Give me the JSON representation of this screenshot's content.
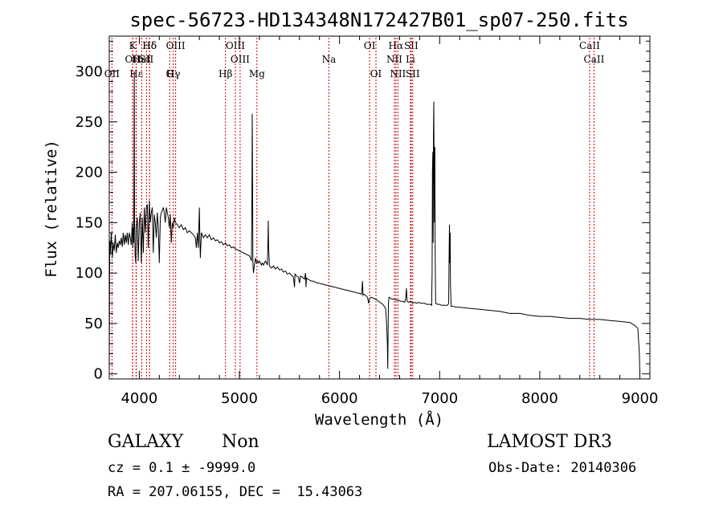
{
  "chart_data": {
    "type": "line",
    "title": "spec-56723-HD134348N172427B01_sp07-250.fits",
    "xlabel": "Wavelength (Å)",
    "ylabel": "Flux (relative)",
    "xlim": [
      3700,
      9100
    ],
    "ylim": [
      -5,
      335
    ],
    "x_ticks": [
      4000,
      5000,
      6000,
      7000,
      8000,
      9000
    ],
    "y_ticks": [
      0,
      50,
      100,
      150,
      200,
      250,
      300
    ],
    "grid": false,
    "line_color": "#000000",
    "marker_color": "#cc0000",
    "spectrum": [
      [
        3700,
        0
      ],
      [
        3705,
        132
      ],
      [
        3710,
        118
      ],
      [
        3720,
        140
      ],
      [
        3730,
        115
      ],
      [
        3740,
        130
      ],
      [
        3750,
        122
      ],
      [
        3760,
        138
      ],
      [
        3770,
        120
      ],
      [
        3780,
        130
      ],
      [
        3790,
        125
      ],
      [
        3800,
        132
      ],
      [
        3810,
        128
      ],
      [
        3820,
        135
      ],
      [
        3830,
        126
      ],
      [
        3840,
        140
      ],
      [
        3850,
        128
      ],
      [
        3860,
        138
      ],
      [
        3870,
        130
      ],
      [
        3880,
        140
      ],
      [
        3890,
        128
      ],
      [
        3900,
        140
      ],
      [
        3910,
        135
      ],
      [
        3920,
        128
      ],
      [
        3930,
        150
      ],
      [
        3935,
        125
      ],
      [
        3940,
        145
      ],
      [
        3945,
        130
      ],
      [
        3948,
        200
      ],
      [
        3950,
        300
      ],
      [
        3953,
        150
      ],
      [
        3958,
        118
      ],
      [
        3965,
        110
      ],
      [
        3970,
        145
      ],
      [
        3980,
        155
      ],
      [
        3990,
        112
      ],
      [
        4000,
        150
      ],
      [
        4010,
        160
      ],
      [
        4020,
        110
      ],
      [
        4030,
        155
      ],
      [
        4040,
        120
      ],
      [
        4050,
        165
      ],
      [
        4060,
        140
      ],
      [
        4070,
        165
      ],
      [
        4080,
        168
      ],
      [
        4090,
        125
      ],
      [
        4100,
        172
      ],
      [
        4110,
        150
      ],
      [
        4120,
        160
      ],
      [
        4130,
        165
      ],
      [
        4140,
        120
      ],
      [
        4150,
        158
      ],
      [
        4160,
        150
      ],
      [
        4170,
        135
      ],
      [
        4180,
        160
      ],
      [
        4190,
        145
      ],
      [
        4200,
        110
      ],
      [
        4210,
        155
      ],
      [
        4220,
        160
      ],
      [
        4230,
        162
      ],
      [
        4240,
        165
      ],
      [
        4250,
        160
      ],
      [
        4260,
        150
      ],
      [
        4270,
        165
      ],
      [
        4280,
        160
      ],
      [
        4290,
        155
      ],
      [
        4300,
        145
      ],
      [
        4310,
        158
      ],
      [
        4320,
        130
      ],
      [
        4330,
        150
      ],
      [
        4340,
        145
      ],
      [
        4350,
        155
      ],
      [
        4360,
        150
      ],
      [
        4380,
        148
      ],
      [
        4400,
        145
      ],
      [
        4420,
        148
      ],
      [
        4440,
        143
      ],
      [
        4460,
        145
      ],
      [
        4480,
        140
      ],
      [
        4500,
        142
      ],
      [
        4520,
        140
      ],
      [
        4540,
        138
      ],
      [
        4560,
        135
      ],
      [
        4570,
        125
      ],
      [
        4580,
        140
      ],
      [
        4590,
        125
      ],
      [
        4600,
        165
      ],
      [
        4605,
        135
      ],
      [
        4610,
        115
      ],
      [
        4620,
        140
      ],
      [
        4640,
        135
      ],
      [
        4660,
        138
      ],
      [
        4680,
        135
      ],
      [
        4700,
        138
      ],
      [
        4720,
        133
      ],
      [
        4740,
        135
      ],
      [
        4760,
        132
      ],
      [
        4780,
        133
      ],
      [
        4800,
        130
      ],
      [
        4820,
        131
      ],
      [
        4840,
        128
      ],
      [
        4860,
        130
      ],
      [
        4880,
        127
      ],
      [
        4900,
        128
      ],
      [
        4920,
        125
      ],
      [
        4940,
        126
      ],
      [
        4960,
        124
      ],
      [
        4980,
        123
      ],
      [
        5000,
        122
      ],
      [
        5020,
        121
      ],
      [
        5040,
        120
      ],
      [
        5060,
        119
      ],
      [
        5080,
        118
      ],
      [
        5100,
        117
      ],
      [
        5110,
        115
      ],
      [
        5120,
        112
      ],
      [
        5125,
        175
      ],
      [
        5128,
        258
      ],
      [
        5132,
        175
      ],
      [
        5135,
        110
      ],
      [
        5140,
        100
      ],
      [
        5150,
        108
      ],
      [
        5160,
        115
      ],
      [
        5170,
        110
      ],
      [
        5180,
        112
      ],
      [
        5190,
        110
      ],
      [
        5200,
        112
      ],
      [
        5210,
        110
      ],
      [
        5220,
        108
      ],
      [
        5230,
        110
      ],
      [
        5240,
        108
      ],
      [
        5250,
        110
      ],
      [
        5260,
        112
      ],
      [
        5270,
        110
      ],
      [
        5280,
        108
      ],
      [
        5285,
        130
      ],
      [
        5288,
        152
      ],
      [
        5292,
        125
      ],
      [
        5300,
        107
      ],
      [
        5320,
        105
      ],
      [
        5340,
        107
      ],
      [
        5360,
        104
      ],
      [
        5380,
        106
      ],
      [
        5400,
        103
      ],
      [
        5420,
        104
      ],
      [
        5440,
        101
      ],
      [
        5460,
        102
      ],
      [
        5480,
        99
      ],
      [
        5500,
        100
      ],
      [
        5520,
        98
      ],
      [
        5540,
        96
      ],
      [
        5550,
        86
      ],
      [
        5555,
        99
      ],
      [
        5570,
        97
      ],
      [
        5590,
        96
      ],
      [
        5600,
        90
      ],
      [
        5610,
        97
      ],
      [
        5630,
        96
      ],
      [
        5650,
        94
      ],
      [
        5660,
        100
      ],
      [
        5665,
        86
      ],
      [
        5670,
        95
      ],
      [
        5700,
        93
      ],
      [
        5720,
        92
      ],
      [
        5740,
        92
      ],
      [
        5760,
        91
      ],
      [
        5780,
        90
      ],
      [
        5800,
        90
      ],
      [
        5820,
        89
      ],
      [
        5840,
        89
      ],
      [
        5860,
        88
      ],
      [
        5880,
        88
      ],
      [
        5900,
        87
      ],
      [
        5920,
        87
      ],
      [
        5940,
        86
      ],
      [
        5960,
        86
      ],
      [
        5980,
        85
      ],
      [
        6000,
        85
      ],
      [
        6020,
        84
      ],
      [
        6040,
        84
      ],
      [
        6060,
        83
      ],
      [
        6080,
        83
      ],
      [
        6100,
        82
      ],
      [
        6120,
        82
      ],
      [
        6140,
        81
      ],
      [
        6160,
        81
      ],
      [
        6180,
        80
      ],
      [
        6200,
        80
      ],
      [
        6220,
        79
      ],
      [
        6230,
        92
      ],
      [
        6235,
        78
      ],
      [
        6240,
        79
      ],
      [
        6260,
        78
      ],
      [
        6280,
        76
      ],
      [
        6290,
        70
      ],
      [
        6300,
        75
      ],
      [
        6320,
        76
      ],
      [
        6340,
        75
      ],
      [
        6360,
        74
      ],
      [
        6380,
        73
      ],
      [
        6400,
        71
      ],
      [
        6420,
        70
      ],
      [
        6440,
        68
      ],
      [
        6460,
        65
      ],
      [
        6470,
        50
      ],
      [
        6478,
        30
      ],
      [
        6482,
        5
      ],
      [
        6488,
        70
      ],
      [
        6495,
        76
      ],
      [
        6510,
        75
      ],
      [
        6530,
        74
      ],
      [
        6550,
        74
      ],
      [
        6570,
        73
      ],
      [
        6590,
        73
      ],
      [
        6610,
        72
      ],
      [
        6630,
        72
      ],
      [
        6650,
        71
      ],
      [
        6660,
        74
      ],
      [
        6668,
        85
      ],
      [
        6675,
        72
      ],
      [
        6690,
        71
      ],
      [
        6710,
        72
      ],
      [
        6730,
        70
      ],
      [
        6750,
        71
      ],
      [
        6770,
        70
      ],
      [
        6790,
        71
      ],
      [
        6810,
        70
      ],
      [
        6830,
        70
      ],
      [
        6850,
        70
      ],
      [
        6870,
        69
      ],
      [
        6890,
        69
      ],
      [
        6910,
        69
      ],
      [
        6920,
        68
      ],
      [
        6925,
        100
      ],
      [
        6928,
        200
      ],
      [
        6932,
        220
      ],
      [
        6935,
        130
      ],
      [
        6938,
        240
      ],
      [
        6942,
        270
      ],
      [
        6945,
        200
      ],
      [
        6948,
        150
      ],
      [
        6952,
        225
      ],
      [
        6955,
        120
      ],
      [
        6960,
        70
      ],
      [
        6980,
        69
      ],
      [
        7000,
        69
      ],
      [
        7020,
        68
      ],
      [
        7040,
        68
      ],
      [
        7060,
        68
      ],
      [
        7080,
        68
      ],
      [
        7090,
        70
      ],
      [
        7095,
        120
      ],
      [
        7098,
        148
      ],
      [
        7102,
        110
      ],
      [
        7105,
        140
      ],
      [
        7108,
        90
      ],
      [
        7115,
        67
      ],
      [
        7140,
        67
      ],
      [
        7160,
        66
      ],
      [
        7200,
        66
      ],
      [
        7300,
        65
      ],
      [
        7400,
        64
      ],
      [
        7500,
        63
      ],
      [
        7600,
        62
      ],
      [
        7700,
        60
      ],
      [
        7800,
        60
      ],
      [
        7900,
        58
      ],
      [
        8000,
        57
      ],
      [
        8100,
        57
      ],
      [
        8200,
        56
      ],
      [
        8300,
        55
      ],
      [
        8400,
        55
      ],
      [
        8500,
        54
      ],
      [
        8600,
        54
      ],
      [
        8700,
        53
      ],
      [
        8800,
        52
      ],
      [
        8900,
        51
      ],
      [
        8950,
        48
      ],
      [
        8980,
        45
      ],
      [
        8995,
        20
      ],
      [
        9000,
        0
      ]
    ],
    "line_markers": [
      {
        "x": 3727,
        "row": 2,
        "label": "OII"
      },
      {
        "x": 3934,
        "row": 1,
        "label": "OII"
      },
      {
        "x": 3970,
        "row": 2,
        "label": "Hε"
      },
      {
        "x": 4102,
        "row": 0,
        "label": "Hδ"
      },
      {
        "x": 4025,
        "row": 1,
        "label": "HeI"
      },
      {
        "x": 4340,
        "row": 2,
        "label": "Hγ"
      },
      {
        "x": 3934,
        "row": 0,
        "label": "K"
      },
      {
        "x": 3968,
        "row": 1,
        "label": "H"
      },
      {
        "x": 4102,
        "row": 0,
        "label": "Hδ"
      },
      {
        "x": 4072,
        "row": 1,
        "label": "SII"
      },
      {
        "x": 4304,
        "row": 2,
        "label": "G"
      },
      {
        "x": 4363,
        "row": 0,
        "label": "OIII"
      },
      {
        "x": 4861,
        "row": 2,
        "label": "Hβ"
      },
      {
        "x": 4959,
        "row": 0,
        "label": "OIII"
      },
      {
        "x": 5007,
        "row": 1,
        "label": "OIII"
      },
      {
        "x": 5175,
        "row": 2,
        "label": "Mg"
      },
      {
        "x": 5894,
        "row": 1,
        "label": "Na"
      },
      {
        "x": 6300,
        "row": 0,
        "label": "OI"
      },
      {
        "x": 6364,
        "row": 2,
        "label": "OI"
      },
      {
        "x": 6563,
        "row": 0,
        "label": "Hα"
      },
      {
        "x": 6548,
        "row": 1,
        "label": "NII"
      },
      {
        "x": 6583,
        "row": 2,
        "label": "NII"
      },
      {
        "x": 6716,
        "row": 0,
        "label": "SII"
      },
      {
        "x": 6708,
        "row": 1,
        "label": "Li"
      },
      {
        "x": 6731,
        "row": 2,
        "label": "SII"
      },
      {
        "x": 8498,
        "row": 0,
        "label": "CaII"
      },
      {
        "x": 8542,
        "row": 1,
        "label": "CaII"
      }
    ]
  },
  "info": {
    "class_label": "GALAXY",
    "subclass_label": "Non",
    "survey_label": "LAMOST DR3",
    "cz_text": "cz = 0.1 ± -9999.0",
    "obs_date_text": "Obs-Date: 20140306",
    "coords_text": "RA = 207.06155, DEC =  15.43063"
  }
}
